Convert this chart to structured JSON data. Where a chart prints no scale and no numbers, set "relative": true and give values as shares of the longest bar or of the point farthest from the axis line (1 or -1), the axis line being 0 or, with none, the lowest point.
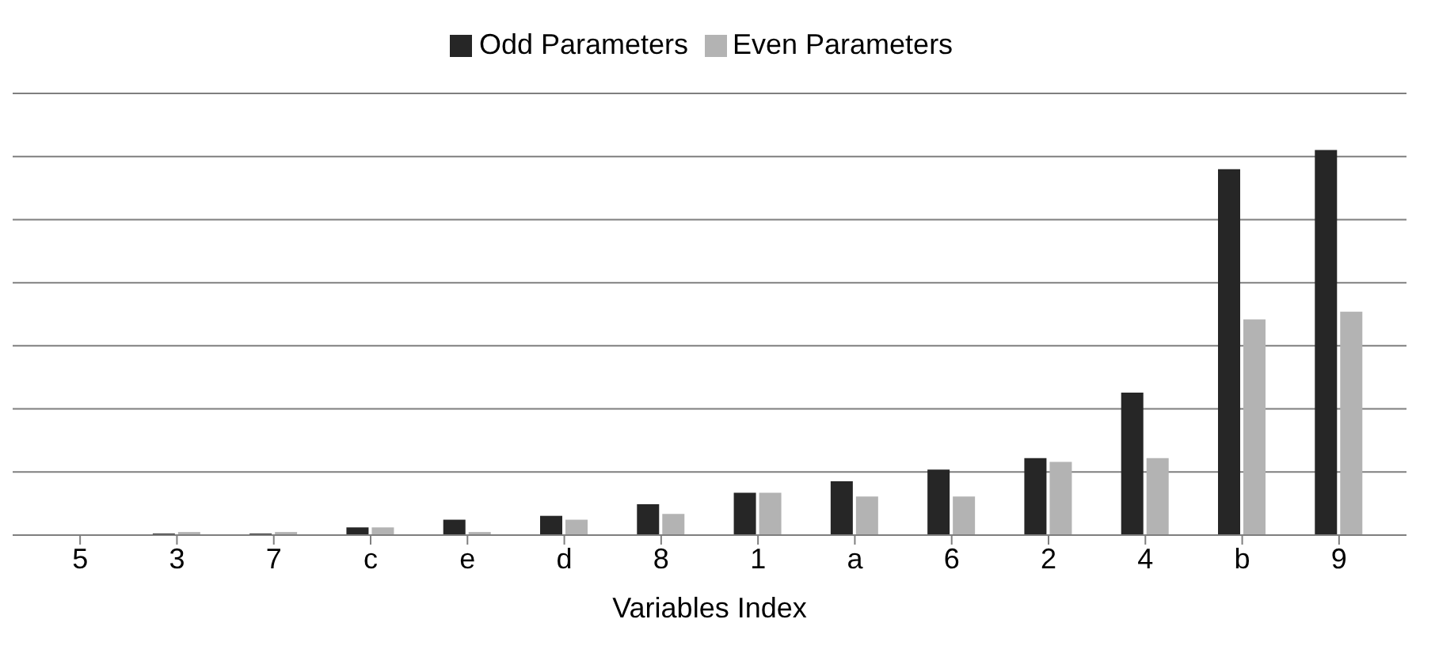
{
  "chart_data": {
    "type": "bar",
    "relative": true,
    "xlabel": "Variables Index",
    "categories": [
      "5",
      "3",
      "7",
      "c",
      "e",
      "d",
      "8",
      "1",
      "a",
      "6",
      "2",
      "4",
      "b",
      "9"
    ],
    "series": [
      {
        "name": "Odd Parameters",
        "color": "#262626",
        "values": [
          0,
          0.004,
          0.004,
          0.02,
          0.04,
          0.05,
          0.08,
          0.11,
          0.14,
          0.17,
          0.2,
          0.37,
          0.95,
          1
        ]
      },
      {
        "name": "Even Parameters",
        "color": "#b3b3b3",
        "values": [
          0,
          0.008,
          0.008,
          0.02,
          0.008,
          0.04,
          0.055,
          0.11,
          0.1,
          0.1,
          0.19,
          0.2,
          0.56,
          0.58
        ]
      }
    ],
    "grid": "y",
    "legend": "top"
  }
}
